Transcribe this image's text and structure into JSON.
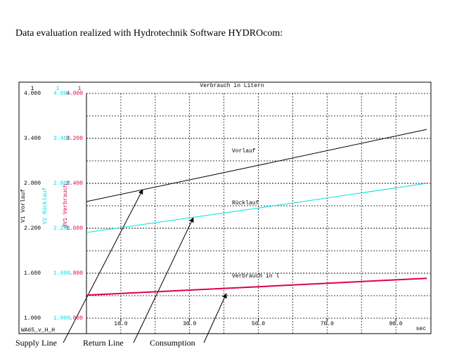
{
  "header": {
    "text": "Data evaluation realized with Hydrotechnik Software HYDROcom:"
  },
  "chart_data": {
    "type": "line",
    "title": "Verbrauch in Litern",
    "x_label": "sec",
    "corner_label": "WA65_v_H_H",
    "x": [
      0,
      50,
      99
    ],
    "xlim": [
      0,
      100
    ],
    "xticks": [
      {
        "value": 10,
        "label": "10.0"
      },
      {
        "value": 30,
        "label": "30.0"
      },
      {
        "value": 50,
        "label": "50.0"
      },
      {
        "value": 70,
        "label": "70.0"
      },
      {
        "value": 90,
        "label": "90.0"
      }
    ],
    "xgrid": [
      10,
      20,
      30,
      40,
      50,
      60,
      70,
      80,
      90
    ],
    "ylim": [
      1,
      4
    ],
    "y_label": "V1 Vorlauf",
    "y_unit": "1",
    "yticks": [
      {
        "value": 1,
        "label": "1.000"
      },
      {
        "value": 1.6,
        "label": "1.600"
      },
      {
        "value": 2.2,
        "label": "2.200"
      },
      {
        "value": 2.8,
        "label": "2.800"
      },
      {
        "value": 3.4,
        "label": "3.400"
      },
      {
        "value": 4,
        "label": "4.000"
      }
    ],
    "ygrid": [
      1.3,
      1.6,
      1.9,
      2.2,
      2.5,
      2.8,
      3.1,
      3.4,
      3.7
    ],
    "y2lim": [
      1,
      4
    ],
    "y2_label": "V2 Rücklauf",
    "y2_unit": "1",
    "y2_color": "#00e0e0",
    "y2ticks": [
      {
        "value": 1,
        "label": "1.000"
      },
      {
        "value": 1.6,
        "label": "1.600"
      },
      {
        "value": 2.2,
        "label": "2.200"
      },
      {
        "value": 2.8,
        "label": "2.800"
      },
      {
        "value": 3.4,
        "label": "3.400"
      },
      {
        "value": 4,
        "label": "4.000"
      }
    ],
    "y3lim": [
      0,
      4
    ],
    "y3_label": "dV1 Verbrauch",
    "y3_unit": "1",
    "y3_color": "#e0004a",
    "y3ticks": [
      {
        "value": 0,
        "label": ".000"
      },
      {
        "value": 0.8,
        "label": ".800"
      },
      {
        "value": 1.6,
        "label": "1.600"
      },
      {
        "value": 2.4,
        "label": "2.400"
      },
      {
        "value": 3.2,
        "label": "3.200"
      },
      {
        "value": 4,
        "label": "4.000"
      }
    ],
    "grid": true,
    "series": [
      {
        "name": "Vorlauf",
        "color": "#000000",
        "axis": "y",
        "values": [
          2.556,
          3.04,
          3.52
        ]
      },
      {
        "name": "Rücklauf",
        "color": "#00e0e0",
        "axis": "y2",
        "values": [
          2.144,
          2.47,
          2.8
        ]
      },
      {
        "name": "Verbrauch in l",
        "color": "#e0004a",
        "axis": "y3",
        "values": [
          0.41,
          0.56,
          0.71
        ]
      }
    ],
    "annotations": [
      "Supply Line",
      "Return Line",
      "Consumption"
    ]
  }
}
